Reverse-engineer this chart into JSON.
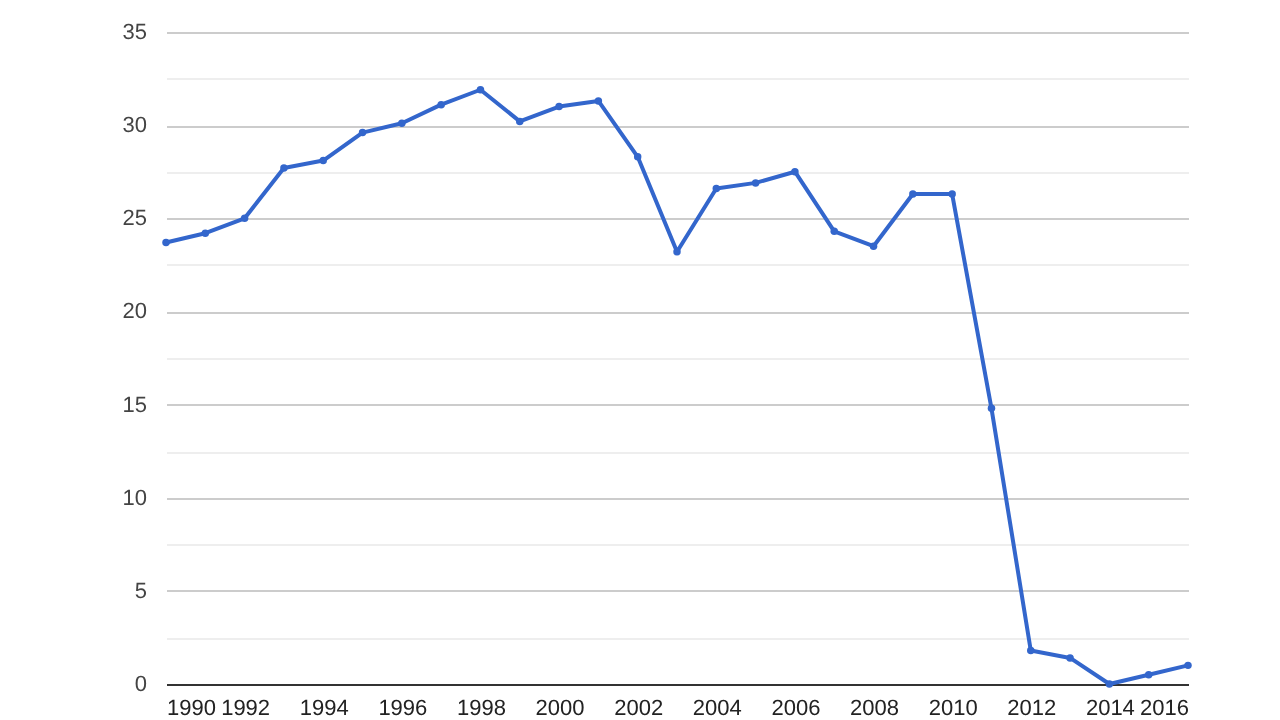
{
  "chart_data": {
    "type": "line",
    "x": [
      1990,
      1991,
      1992,
      1993,
      1994,
      1995,
      1996,
      1997,
      1998,
      1999,
      2000,
      2001,
      2002,
      2003,
      2004,
      2005,
      2006,
      2007,
      2008,
      2009,
      2010,
      2011,
      2012,
      2013,
      2014,
      2015,
      2016
    ],
    "series": [
      {
        "color": "#3366cc",
        "values": [
          23.7,
          24.2,
          25.0,
          27.7,
          28.1,
          29.6,
          30.1,
          31.1,
          31.9,
          30.2,
          31.0,
          31.3,
          28.3,
          23.2,
          26.6,
          26.9,
          27.5,
          24.3,
          23.5,
          26.3,
          26.3,
          14.8,
          1.8,
          1.4,
          0.0,
          0.5,
          1.0
        ]
      }
    ],
    "xlim": [
      1990,
      2016
    ],
    "xticks": [
      1990,
      1992,
      1994,
      1996,
      1998,
      2000,
      2002,
      2004,
      2006,
      2008,
      2010,
      2012,
      2014,
      2016
    ],
    "ylim": [
      0,
      35
    ],
    "yticks": [
      0,
      {
        "value": 2.5,
        "label": null
      },
      5,
      {
        "value": 7.5,
        "label": null
      },
      10,
      {
        "value": 12.5,
        "label": null
      },
      15,
      {
        "value": 17.5,
        "label": null
      },
      20,
      {
        "value": 22.5,
        "label": null
      },
      25,
      {
        "value": 27.5,
        "label": null
      },
      30,
      {
        "value": 32.5,
        "label": null
      },
      35
    ],
    "grid": "y",
    "marker": "circle",
    "line_style": "solid"
  }
}
